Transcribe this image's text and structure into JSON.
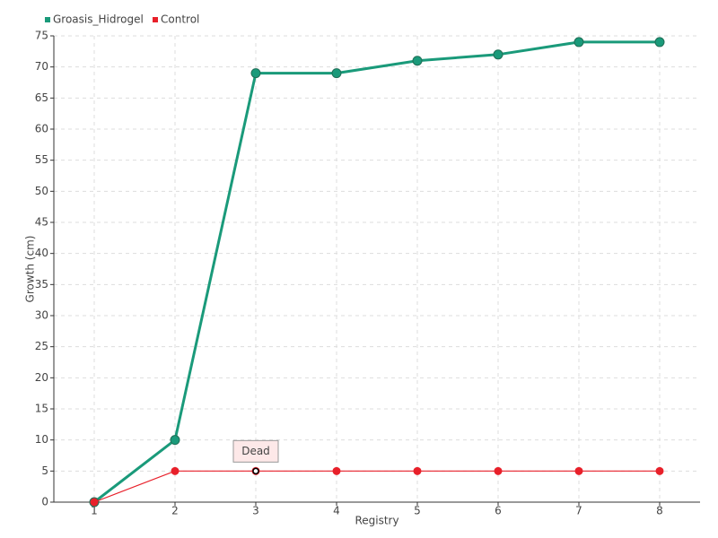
{
  "chart_data": {
    "type": "line",
    "x": [
      1,
      2,
      3,
      4,
      5,
      6,
      7,
      8
    ],
    "xlabel": "Registry",
    "ylabel": "Growth (cm)",
    "xlim": [
      0.5,
      8.5
    ],
    "xticks": [
      1,
      2,
      3,
      4,
      5,
      6,
      7,
      8
    ],
    "ylim": [
      0,
      75
    ],
    "yticks": [
      0,
      5,
      10,
      15,
      20,
      25,
      30,
      35,
      40,
      45,
      50,
      55,
      60,
      65,
      70,
      75
    ],
    "grid": true,
    "legend": "top-left",
    "series": [
      {
        "name": "Groasis_Hidrogel",
        "color": "#1a9a7a",
        "values": [
          0,
          10,
          69,
          69,
          71,
          72,
          74,
          74
        ]
      },
      {
        "name": "Control",
        "color": "#e8202a",
        "values": [
          0,
          5,
          5,
          5,
          5,
          5,
          5,
          5
        ]
      }
    ],
    "annotations": [
      {
        "text": "Dead",
        "x": 3,
        "y": 5
      }
    ]
  }
}
